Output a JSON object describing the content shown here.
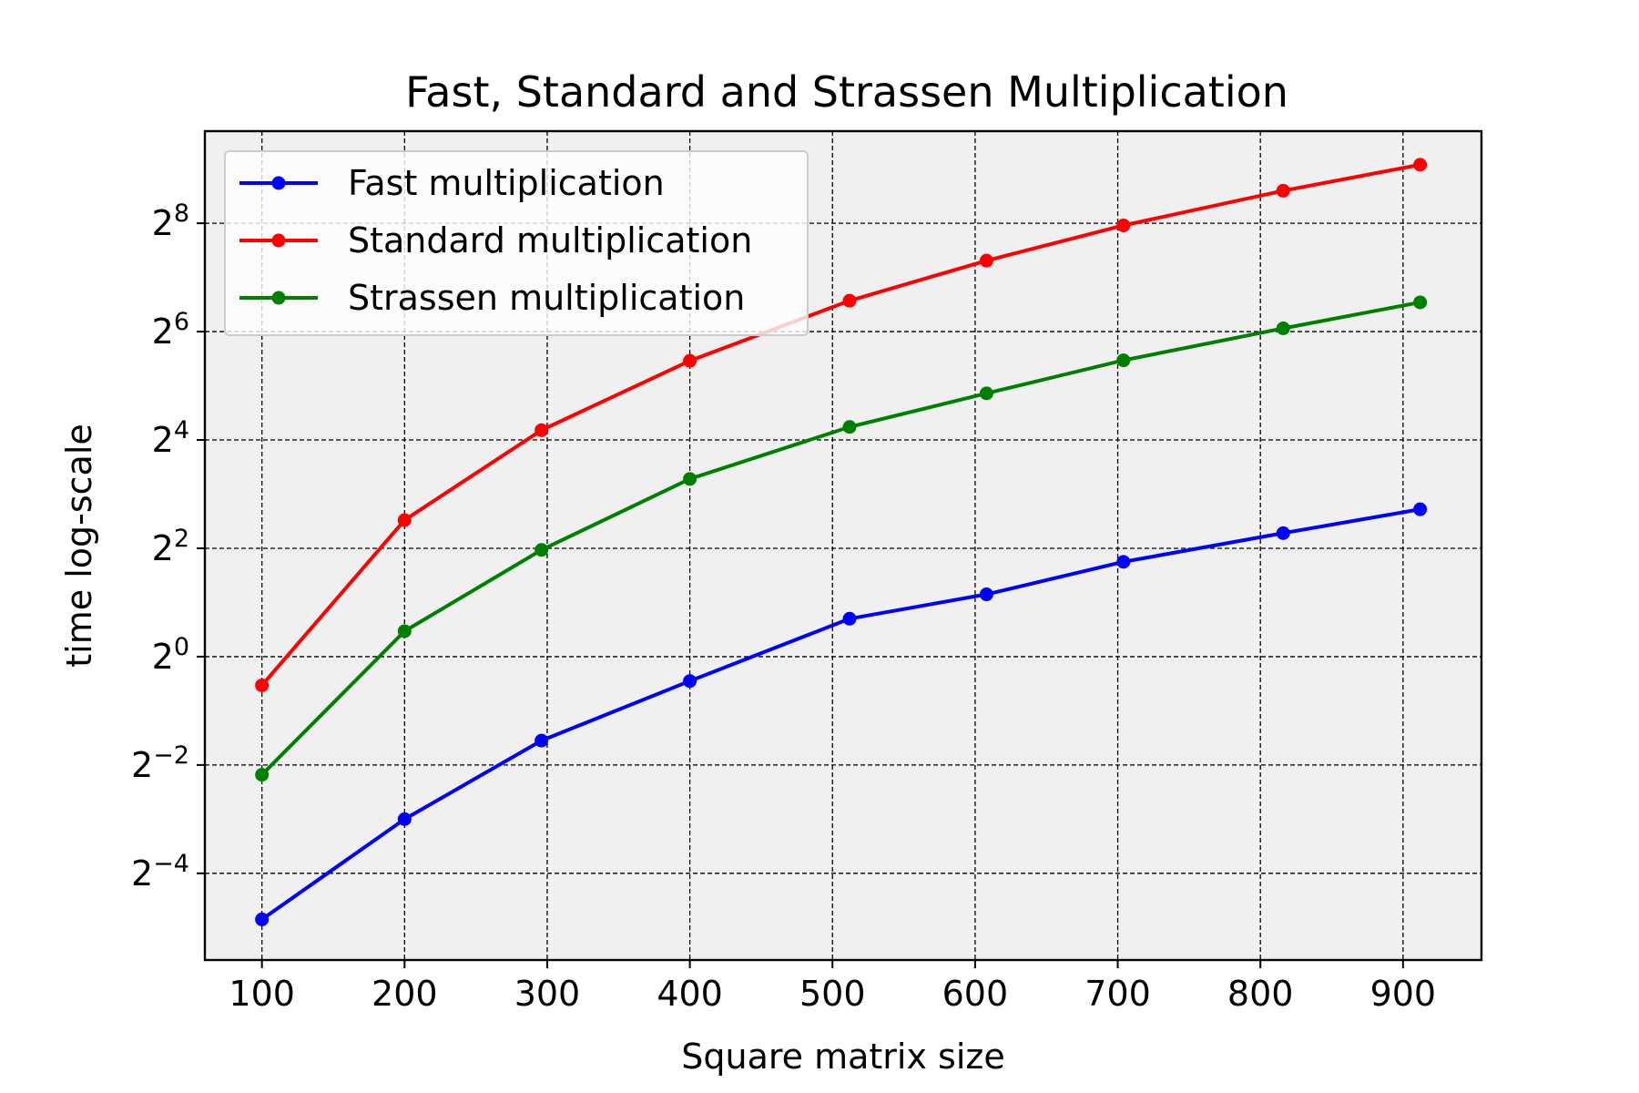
{
  "chart_data": {
    "type": "line",
    "title": "Fast, Standard and Strassen Multiplication",
    "xlabel": "Square matrix size",
    "ylabel": "time log-scale",
    "x_scale": "linear",
    "y_scale": "log2",
    "xlim": [
      60,
      955
    ],
    "ylim_exponent": [
      -5.6,
      9.7
    ],
    "x_ticks": [
      100,
      200,
      300,
      400,
      500,
      600,
      700,
      800,
      900
    ],
    "x_tick_labels": [
      "100",
      "200",
      "300",
      "400",
      "500",
      "600",
      "700",
      "800",
      "900"
    ],
    "y_ticks": [
      {
        "base": "2",
        "exponent": "−4",
        "value": -4
      },
      {
        "base": "2",
        "exponent": "−2",
        "value": -2
      },
      {
        "base": "2",
        "exponent": "0",
        "value": 0
      },
      {
        "base": "2",
        "exponent": "2",
        "value": 2
      },
      {
        "base": "2",
        "exponent": "4",
        "value": 4
      },
      {
        "base": "2",
        "exponent": "6",
        "value": 6
      },
      {
        "base": "2",
        "exponent": "8",
        "value": 8
      }
    ],
    "grid": true,
    "legend_position": "top-left",
    "x": [
      100,
      200,
      296,
      400,
      512,
      608,
      704,
      816,
      912
    ],
    "series": [
      {
        "name": "Fast multiplication",
        "color": "#0000ff",
        "log2_values": [
          -4.85,
          -3.0,
          -1.55,
          -0.45,
          0.7,
          1.15,
          1.75,
          2.28,
          2.72
        ]
      },
      {
        "name": "Standard multiplication",
        "color": "#ff0000",
        "log2_values": [
          -0.53,
          2.52,
          4.18,
          5.46,
          6.57,
          7.31,
          7.96,
          8.6,
          9.08
        ]
      },
      {
        "name": "Strassen multiplication",
        "color": "#008000",
        "log2_values": [
          -2.18,
          0.47,
          1.97,
          3.28,
          4.24,
          4.86,
          5.47,
          6.06,
          6.54
        ]
      }
    ]
  },
  "colors": {
    "plot_background": "#f0f0f0",
    "grid": "#000000"
  }
}
